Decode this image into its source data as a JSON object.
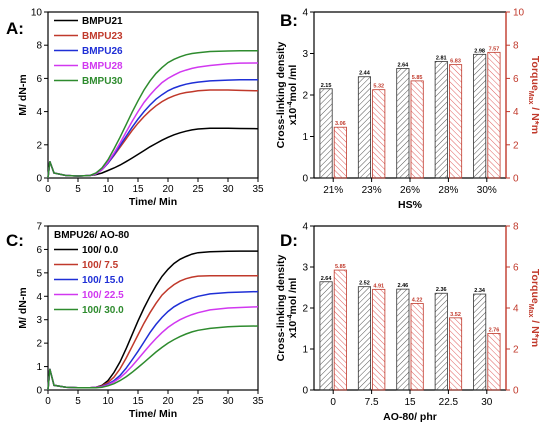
{
  "colors": {
    "black": "#000000",
    "red": "#c0392b",
    "blue": "#1f2fd6",
    "magenta": "#d138f0",
    "green": "#2e8b2e",
    "bar_hatch_black": "#555555",
    "bar_hatch_red": "#e06060",
    "axis_red": "#c0392b"
  },
  "chart_data": [
    {
      "id": "A",
      "panel_label": "A:",
      "type": "line",
      "xlabel": "Time/ Min",
      "ylabel": "M/ dN-m",
      "xlim": [
        0,
        35
      ],
      "ylim": [
        0,
        10
      ],
      "xticks": [
        "0",
        "5",
        "10",
        "15",
        "20",
        "25",
        "30",
        "35"
      ],
      "yticks": [
        "0",
        "2",
        "4",
        "6",
        "8",
        "10"
      ],
      "legend_position": "top-left",
      "series": [
        {
          "name": "BMPU21",
          "color": "black",
          "x": [
            0,
            0.3,
            1,
            3,
            5,
            7,
            8,
            9,
            10,
            11,
            12,
            13,
            14,
            15,
            16,
            17,
            18,
            19,
            20,
            21,
            22,
            23,
            24,
            25,
            27,
            30,
            32,
            35
          ],
          "y": [
            0,
            1.0,
            0.3,
            0.15,
            0.12,
            0.15,
            0.2,
            0.3,
            0.45,
            0.6,
            0.78,
            0.98,
            1.2,
            1.42,
            1.65,
            1.88,
            2.08,
            2.28,
            2.45,
            2.6,
            2.72,
            2.82,
            2.9,
            2.95,
            3.0,
            3.0,
            2.98,
            2.97
          ]
        },
        {
          "name": "BMPU23",
          "color": "red",
          "x": [
            0,
            0.3,
            1,
            3,
            5,
            7,
            8,
            9,
            10,
            11,
            12,
            13,
            14,
            15,
            16,
            17,
            18,
            19,
            20,
            21,
            22,
            23,
            24,
            25,
            27,
            30,
            32,
            35
          ],
          "y": [
            0,
            1.0,
            0.3,
            0.15,
            0.12,
            0.15,
            0.25,
            0.5,
            0.9,
            1.35,
            1.85,
            2.35,
            2.85,
            3.3,
            3.7,
            4.05,
            4.35,
            4.6,
            4.8,
            4.95,
            5.07,
            5.15,
            5.2,
            5.25,
            5.3,
            5.3,
            5.28,
            5.25
          ]
        },
        {
          "name": "BMPU26",
          "color": "blue",
          "x": [
            0,
            0.3,
            1,
            3,
            5,
            7,
            8,
            9,
            10,
            11,
            12,
            13,
            14,
            15,
            16,
            17,
            18,
            19,
            20,
            21,
            22,
            23,
            24,
            25,
            27,
            30,
            32,
            35
          ],
          "y": [
            0,
            1.0,
            0.3,
            0.15,
            0.12,
            0.15,
            0.25,
            0.5,
            0.9,
            1.4,
            1.95,
            2.5,
            3.05,
            3.55,
            4.0,
            4.4,
            4.75,
            5.02,
            5.25,
            5.42,
            5.55,
            5.65,
            5.72,
            5.78,
            5.85,
            5.9,
            5.92,
            5.92
          ]
        },
        {
          "name": "BMPU28",
          "color": "magenta",
          "x": [
            0,
            0.3,
            1,
            3,
            5,
            7,
            8,
            9,
            10,
            11,
            12,
            13,
            14,
            15,
            16,
            17,
            18,
            19,
            20,
            21,
            22,
            23,
            24,
            25,
            27,
            30,
            32,
            35
          ],
          "y": [
            0,
            1.0,
            0.3,
            0.15,
            0.12,
            0.15,
            0.25,
            0.5,
            0.95,
            1.5,
            2.1,
            2.75,
            3.4,
            4.0,
            4.55,
            5.0,
            5.4,
            5.75,
            6.0,
            6.2,
            6.38,
            6.5,
            6.6,
            6.68,
            6.78,
            6.88,
            6.92,
            6.93
          ]
        },
        {
          "name": "BMPU30",
          "color": "green",
          "x": [
            0,
            0.3,
            1,
            3,
            5,
            7,
            8,
            9,
            10,
            11,
            12,
            13,
            14,
            15,
            16,
            17,
            18,
            19,
            20,
            21,
            22,
            23,
            24,
            25,
            27,
            30,
            32,
            35
          ],
          "y": [
            0,
            1.0,
            0.3,
            0.15,
            0.12,
            0.15,
            0.3,
            0.6,
            1.1,
            1.75,
            2.45,
            3.2,
            3.95,
            4.65,
            5.3,
            5.85,
            6.3,
            6.65,
            6.95,
            7.15,
            7.3,
            7.42,
            7.5,
            7.55,
            7.62,
            7.65,
            7.66,
            7.66
          ]
        }
      ]
    },
    {
      "id": "B",
      "panel_label": "B:",
      "type": "bar",
      "xlabel": "HS%",
      "ylabel": "Cross-linking density",
      "ylabel_line2": "x10",
      "ylabel_exp": "-4",
      "ylabel_line2_end": "mol /ml",
      "y2label": "Torque",
      "y2label_sub": "Max",
      "y2label_end": " / N*m",
      "categories": [
        "21%",
        "23%",
        "26%",
        "28%",
        "30%"
      ],
      "ylim": [
        0,
        4
      ],
      "y2lim": [
        0,
        10
      ],
      "yticks": [
        "0",
        "1",
        "2",
        "3",
        "4"
      ],
      "y2ticks": [
        "0",
        "2",
        "4",
        "6",
        "8",
        "10"
      ],
      "series": [
        {
          "axis": "left",
          "color": "black",
          "values": [
            2.15,
            2.44,
            2.64,
            2.81,
            2.98
          ],
          "labels": [
            "2.15",
            "2.44",
            "2.64",
            "2.81",
            "2.98"
          ]
        },
        {
          "axis": "right",
          "color": "red",
          "values": [
            3.06,
            5.32,
            5.85,
            6.83,
            7.57
          ],
          "labels": [
            "3.06",
            "5.32",
            "5.85",
            "6.83",
            "7.57"
          ]
        }
      ]
    },
    {
      "id": "C",
      "panel_label": "C:",
      "type": "line",
      "xlabel": "Time/ Min",
      "ylabel": "M/ dN-m",
      "xlim": [
        0,
        35
      ],
      "ylim": [
        0,
        7
      ],
      "xticks": [
        "0",
        "5",
        "10",
        "15",
        "20",
        "25",
        "30",
        "35"
      ],
      "yticks": [
        "0",
        "1",
        "2",
        "3",
        "4",
        "5",
        "6",
        "7"
      ],
      "legend_title": "BMPU26/ AO-80",
      "legend_position": "top-left",
      "series": [
        {
          "name": "100/ 0.0",
          "color": "black",
          "x": [
            0,
            0.3,
            1,
            3,
            5,
            7,
            8,
            9,
            10,
            11,
            12,
            13,
            14,
            15,
            16,
            17,
            18,
            19,
            20,
            21,
            22,
            23,
            24,
            25,
            27,
            30,
            32,
            35
          ],
          "y": [
            0,
            0.9,
            0.2,
            0.12,
            0.1,
            0.1,
            0.12,
            0.2,
            0.4,
            0.75,
            1.2,
            1.75,
            2.35,
            2.95,
            3.5,
            4.0,
            4.45,
            4.85,
            5.15,
            5.4,
            5.58,
            5.7,
            5.8,
            5.86,
            5.9,
            5.92,
            5.93,
            5.93
          ]
        },
        {
          "name": "100/ 7.5",
          "color": "red",
          "x": [
            0,
            0.3,
            1,
            3,
            5,
            7,
            8,
            9,
            10,
            11,
            12,
            13,
            14,
            15,
            16,
            17,
            18,
            19,
            20,
            21,
            22,
            23,
            24,
            25,
            27,
            30,
            32,
            35
          ],
          "y": [
            0,
            0.9,
            0.2,
            0.12,
            0.1,
            0.1,
            0.12,
            0.18,
            0.32,
            0.55,
            0.9,
            1.35,
            1.85,
            2.35,
            2.85,
            3.3,
            3.7,
            4.05,
            4.3,
            4.5,
            4.65,
            4.75,
            4.82,
            4.86,
            4.88,
            4.88,
            4.88,
            4.88
          ]
        },
        {
          "name": "100/ 15.0",
          "color": "blue",
          "x": [
            0,
            0.3,
            1,
            3,
            5,
            7,
            8,
            9,
            10,
            11,
            12,
            13,
            14,
            15,
            16,
            17,
            18,
            19,
            20,
            21,
            22,
            23,
            24,
            25,
            27,
            30,
            32,
            35
          ],
          "y": [
            0,
            0.9,
            0.2,
            0.12,
            0.1,
            0.1,
            0.11,
            0.15,
            0.25,
            0.4,
            0.62,
            0.92,
            1.28,
            1.65,
            2.05,
            2.45,
            2.8,
            3.1,
            3.35,
            3.55,
            3.7,
            3.82,
            3.92,
            4.0,
            4.1,
            4.16,
            4.18,
            4.2
          ]
        },
        {
          "name": "100/ 22.5",
          "color": "magenta",
          "x": [
            0,
            0.3,
            1,
            3,
            5,
            7,
            8,
            9,
            10,
            11,
            12,
            13,
            14,
            15,
            16,
            17,
            18,
            19,
            20,
            21,
            22,
            23,
            24,
            25,
            27,
            30,
            32,
            35
          ],
          "y": [
            0,
            0.9,
            0.2,
            0.12,
            0.1,
            0.1,
            0.11,
            0.14,
            0.22,
            0.35,
            0.52,
            0.75,
            1.02,
            1.32,
            1.62,
            1.92,
            2.2,
            2.45,
            2.67,
            2.85,
            3.0,
            3.12,
            3.22,
            3.3,
            3.42,
            3.5,
            3.52,
            3.55
          ]
        },
        {
          "name": "100/ 30.0",
          "color": "green",
          "x": [
            0,
            0.3,
            1,
            3,
            5,
            7,
            8,
            9,
            10,
            11,
            12,
            13,
            14,
            15,
            16,
            17,
            18,
            19,
            20,
            21,
            22,
            23,
            24,
            25,
            27,
            30,
            32,
            35
          ],
          "y": [
            0,
            0.9,
            0.2,
            0.12,
            0.1,
            0.1,
            0.1,
            0.12,
            0.18,
            0.27,
            0.4,
            0.56,
            0.75,
            0.96,
            1.18,
            1.4,
            1.62,
            1.82,
            2.0,
            2.15,
            2.28,
            2.39,
            2.48,
            2.55,
            2.63,
            2.7,
            2.72,
            2.73
          ]
        }
      ]
    },
    {
      "id": "D",
      "panel_label": "D:",
      "type": "bar",
      "xlabel": "AO-80/ phr",
      "ylabel": "Cross-linking density",
      "ylabel_line2": "x10",
      "ylabel_exp": "-4",
      "ylabel_line2_end": "mol /ml",
      "y2label": "Torque",
      "y2label_sub": "Max",
      "y2label_end": " / N*m",
      "categories": [
        "0",
        "7.5",
        "15",
        "22.5",
        "30"
      ],
      "ylim": [
        0,
        4
      ],
      "y2lim": [
        0,
        8
      ],
      "yticks": [
        "0",
        "1",
        "2",
        "3",
        "4"
      ],
      "y2ticks": [
        "0",
        "2",
        "4",
        "6",
        "8"
      ],
      "series": [
        {
          "axis": "left",
          "color": "black",
          "values": [
            2.64,
            2.52,
            2.46,
            2.36,
            2.34
          ],
          "labels": [
            "2.64",
            "2.52",
            "2.46",
            "2.36",
            "2.34"
          ]
        },
        {
          "axis": "right",
          "color": "red",
          "values": [
            5.85,
            4.91,
            4.22,
            3.52,
            2.76
          ],
          "labels": [
            "5.85",
            "4.91",
            "4.22",
            "3.52",
            "2.76"
          ]
        }
      ]
    }
  ]
}
